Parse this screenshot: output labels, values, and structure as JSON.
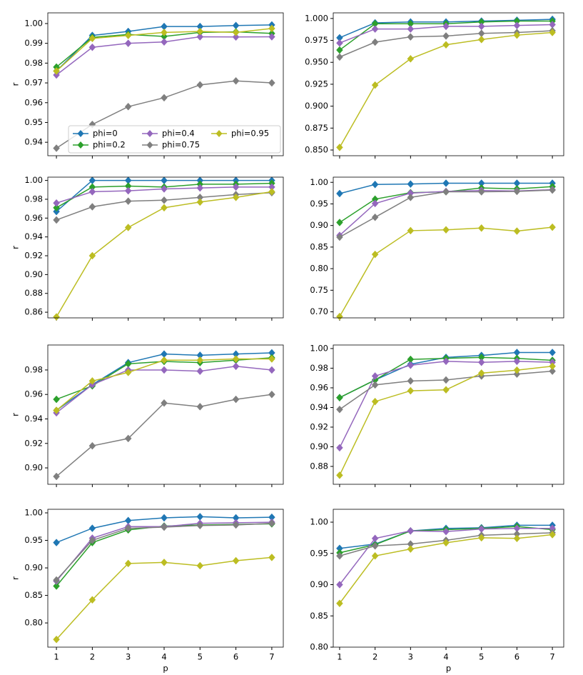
{
  "chart_data": [
    {
      "type": "line",
      "ylabel": "r",
      "legend": "lower right",
      "legend_ncol": 3,
      "x": [
        1,
        2,
        3,
        4,
        5,
        6,
        7
      ],
      "xlim": [
        0.76,
        7.32
      ],
      "xticks": [
        1,
        2,
        3,
        4,
        5,
        6,
        7
      ],
      "xtick_labels": false,
      "ylim": [
        0.9332,
        1.0054
      ],
      "yticks": [
        0.94,
        0.95,
        0.96,
        0.97,
        0.98,
        0.99,
        {
          "value": 1,
          "label": "1.00"
        }
      ],
      "series": [
        {
          "name": "phi=0",
          "color": "#1f77b4",
          "values": [
            0.976,
            0.994,
            0.996,
            0.9985,
            0.9985,
            0.999,
            0.9993
          ]
        },
        {
          "name": "phi=0.2",
          "color": "#2ca02c",
          "values": [
            0.978,
            0.993,
            0.9945,
            0.9935,
            0.9955,
            0.9958,
            0.995
          ]
        },
        {
          "name": "phi=0.4",
          "color": "#9467bd",
          "values": [
            0.974,
            0.988,
            0.99,
            0.9907,
            0.9933,
            0.9932,
            0.9933
          ]
        },
        {
          "name": "phi=0.75",
          "color": "#7f7f7f",
          "values": [
            0.937,
            0.949,
            0.958,
            0.9625,
            0.969,
            0.971,
            0.97
          ]
        },
        {
          "name": "phi=0.95",
          "color": "#bcbd22",
          "values": [
            0.976,
            0.9925,
            0.994,
            0.9955,
            0.996,
            0.9955,
            0.9975
          ]
        }
      ]
    },
    {
      "type": "line",
      "x": [
        1,
        2,
        3,
        4,
        5,
        6,
        7
      ],
      "xlim": [
        0.82,
        7.32
      ],
      "xticks": [
        1,
        2,
        3,
        4,
        5,
        6,
        7
      ],
      "xtick_labels": false,
      "ylim": [
        0.8435,
        1.0064
      ],
      "yticks": [
        {
          "value": 0.85,
          "label": "0.850"
        },
        0.875,
        {
          "value": 0.9,
          "label": "0.900"
        },
        0.925,
        {
          "value": 0.95,
          "label": "0.950"
        },
        0.975,
        {
          "value": 1,
          "label": "1.000"
        }
      ],
      "series": [
        {
          "color": "#1f77b4",
          "values": [
            0.978,
            0.995,
            0.996,
            0.996,
            0.997,
            0.998,
            0.999
          ]
        },
        {
          "color": "#2ca02c",
          "values": [
            0.964,
            0.994,
            0.994,
            0.994,
            0.996,
            0.997,
            0.997
          ]
        },
        {
          "color": "#9467bd",
          "values": [
            0.972,
            0.988,
            0.988,
            0.991,
            0.991,
            0.992,
            0.993
          ]
        },
        {
          "color": "#7f7f7f",
          "values": [
            0.956,
            0.973,
            0.979,
            0.98,
            0.983,
            0.984,
            0.986
          ]
        },
        {
          "color": "#bcbd22",
          "values": [
            0.853,
            0.924,
            0.954,
            0.97,
            0.976,
            0.981,
            0.984
          ]
        }
      ]
    },
    {
      "type": "line",
      "ylabel": "r",
      "x": [
        1,
        2,
        3,
        4,
        5,
        6,
        7
      ],
      "xlim": [
        0.76,
        7.32
      ],
      "xticks": [
        1,
        2,
        3,
        4,
        5,
        6,
        7
      ],
      "xtick_labels": false,
      "ylim": [
        0.854,
        1.0035
      ],
      "yticks": [
        0.86,
        0.88,
        {
          "value": 0.9,
          "label": "0.90"
        },
        0.92,
        0.94,
        0.96,
        0.98,
        {
          "value": 1,
          "label": "1.00"
        }
      ],
      "series": [
        {
          "color": "#1f77b4",
          "values": [
            0.967,
            1.0,
            1.0,
            1.0,
            1.0,
            1.0,
            1.0
          ]
        },
        {
          "color": "#2ca02c",
          "values": [
            0.971,
            0.993,
            0.994,
            0.993,
            0.996,
            0.996,
            0.997
          ]
        },
        {
          "color": "#9467bd",
          "values": [
            0.976,
            0.988,
            0.989,
            0.991,
            0.992,
            0.993,
            0.993
          ]
        },
        {
          "color": "#7f7f7f",
          "values": [
            0.958,
            0.972,
            0.978,
            0.979,
            0.982,
            0.985,
            0.987
          ]
        },
        {
          "color": "#bcbd22",
          "values": [
            0.855,
            0.92,
            0.95,
            0.971,
            0.977,
            0.982,
            0.988
          ]
        }
      ]
    },
    {
      "type": "line",
      "x": [
        1,
        2,
        3,
        4,
        5,
        6,
        7
      ],
      "xlim": [
        0.82,
        7.32
      ],
      "xticks": [
        1,
        2,
        3,
        4,
        5,
        6,
        7
      ],
      "xtick_labels": false,
      "ylim": [
        0.686,
        1.012
      ],
      "yticks": [
        {
          "value": 0.7,
          "label": "0.70"
        },
        0.75,
        {
          "value": 0.8,
          "label": "0.80"
        },
        0.85,
        {
          "value": 0.9,
          "label": "0.90"
        },
        0.95,
        {
          "value": 1,
          "label": "1.00"
        }
      ],
      "series": [
        {
          "color": "#1f77b4",
          "values": [
            0.974,
            0.995,
            0.996,
            0.998,
            0.998,
            0.998,
            0.998
          ]
        },
        {
          "color": "#2ca02c",
          "values": [
            0.907,
            0.961,
            0.976,
            0.978,
            0.987,
            0.985,
            0.99
          ]
        },
        {
          "color": "#9467bd",
          "values": [
            0.877,
            0.951,
            0.975,
            0.979,
            0.981,
            0.98,
            0.983
          ]
        },
        {
          "color": "#7f7f7f",
          "values": [
            0.873,
            0.919,
            0.965,
            0.978,
            0.978,
            0.979,
            0.982
          ]
        },
        {
          "color": "#bcbd22",
          "values": [
            0.689,
            0.833,
            0.888,
            0.89,
            0.894,
            0.887,
            0.896
          ]
        }
      ]
    },
    {
      "type": "line",
      "ylabel": "r",
      "x": [
        1,
        2,
        3,
        4,
        5,
        6,
        7
      ],
      "xlim": [
        0.76,
        7.32
      ],
      "xticks": [
        1,
        2,
        3,
        4,
        5,
        6,
        7
      ],
      "xtick_labels": false,
      "ylim": [
        0.8866,
        1.0004
      ],
      "yticks": [
        {
          "value": 0.9,
          "label": "0.90"
        },
        0.92,
        0.94,
        0.96,
        0.98
      ],
      "series": [
        {
          "color": "#1f77b4",
          "values": [
            0.947,
            0.968,
            0.986,
            0.993,
            0.992,
            0.993,
            0.994
          ]
        },
        {
          "color": "#2ca02c",
          "values": [
            0.956,
            0.967,
            0.985,
            0.987,
            0.986,
            0.988,
            0.99
          ]
        },
        {
          "color": "#9467bd",
          "values": [
            0.945,
            0.968,
            0.98,
            0.98,
            0.979,
            0.983,
            0.98
          ]
        },
        {
          "color": "#7f7f7f",
          "values": [
            0.893,
            0.918,
            0.924,
            0.953,
            0.95,
            0.956,
            0.96
          ]
        },
        {
          "color": "#bcbd22",
          "values": [
            0.947,
            0.971,
            0.978,
            0.988,
            0.988,
            0.989,
            0.989
          ]
        }
      ]
    },
    {
      "type": "line",
      "x": [
        1,
        2,
        3,
        4,
        5,
        6,
        7
      ],
      "xlim": [
        0.82,
        7.32
      ],
      "xticks": [
        1,
        2,
        3,
        4,
        5,
        6,
        7
      ],
      "xtick_labels": false,
      "ylim": [
        0.8618,
        1.0036
      ],
      "yticks": [
        0.88,
        {
          "value": 0.9,
          "label": "0.90"
        },
        0.92,
        0.94,
        0.96,
        0.98,
        {
          "value": 1,
          "label": "1.00"
        }
      ],
      "series": [
        {
          "color": "#1f77b4",
          "values": [
            0.95,
            0.968,
            0.984,
            0.991,
            0.993,
            0.996,
            0.996
          ]
        },
        {
          "color": "#2ca02c",
          "values": [
            0.95,
            0.968,
            0.989,
            0.99,
            0.991,
            0.99,
            0.988
          ]
        },
        {
          "color": "#9467bd",
          "values": [
            0.899,
            0.972,
            0.983,
            0.987,
            0.986,
            0.987,
            0.986
          ]
        },
        {
          "color": "#7f7f7f",
          "values": [
            0.938,
            0.963,
            0.967,
            0.968,
            0.972,
            0.974,
            0.977
          ]
        },
        {
          "color": "#bcbd22",
          "values": [
            0.871,
            0.946,
            0.957,
            0.958,
            0.975,
            0.978,
            0.982
          ]
        }
      ]
    },
    {
      "type": "line",
      "ylabel": "r",
      "xlabel": "p",
      "x": [
        1,
        2,
        3,
        4,
        5,
        6,
        7
      ],
      "xlim": [
        0.76,
        7.32
      ],
      "xticks": [
        1,
        2,
        3,
        4,
        5,
        6,
        7
      ],
      "xtick_labels": true,
      "ylim": [
        0.756,
        1.0065
      ],
      "yticks": [
        {
          "value": 0.8,
          "label": "0.80"
        },
        0.85,
        {
          "value": 0.9,
          "label": "0.90"
        },
        0.95,
        {
          "value": 1,
          "label": "1.00"
        }
      ],
      "series": [
        {
          "color": "#1f77b4",
          "values": [
            0.946,
            0.972,
            0.986,
            0.991,
            0.993,
            0.991,
            0.992
          ]
        },
        {
          "color": "#2ca02c",
          "values": [
            0.867,
            0.946,
            0.969,
            0.976,
            0.978,
            0.979,
            0.98
          ]
        },
        {
          "color": "#9467bd",
          "values": [
            0.876,
            0.954,
            0.975,
            0.975,
            0.981,
            0.982,
            0.983
          ]
        },
        {
          "color": "#7f7f7f",
          "values": [
            0.878,
            0.95,
            0.972,
            0.974,
            0.977,
            0.978,
            0.981
          ]
        },
        {
          "color": "#bcbd22",
          "values": [
            0.77,
            0.842,
            0.908,
            0.91,
            0.904,
            0.913,
            0.919
          ]
        }
      ]
    },
    {
      "type": "line",
      "xlabel": "p",
      "x": [
        1,
        2,
        3,
        4,
        5,
        6,
        7
      ],
      "xlim": [
        0.82,
        7.32
      ],
      "xticks": [
        1,
        2,
        3,
        4,
        5,
        6,
        7
      ],
      "xtick_labels": true,
      "ylim": [
        0.8,
        1.0206
      ],
      "yticks": [
        {
          "value": 0.8,
          "label": "0.80"
        },
        0.85,
        {
          "value": 0.9,
          "label": "0.90"
        },
        0.95,
        {
          "value": 1,
          "label": "1.00"
        }
      ],
      "series": [
        {
          "color": "#1f77b4",
          "values": [
            0.958,
            0.965,
            0.986,
            0.99,
            0.991,
            0.995,
            0.995
          ]
        },
        {
          "color": "#2ca02c",
          "values": [
            0.951,
            0.964,
            0.986,
            0.988,
            0.99,
            0.993,
            0.988
          ]
        },
        {
          "color": "#9467bd",
          "values": [
            0.9,
            0.974,
            0.986,
            0.985,
            0.989,
            0.99,
            0.99
          ]
        },
        {
          "color": "#7f7f7f",
          "values": [
            0.946,
            0.962,
            0.965,
            0.971,
            0.979,
            0.981,
            0.983
          ]
        },
        {
          "color": "#bcbd22",
          "values": [
            0.87,
            0.946,
            0.957,
            0.967,
            0.975,
            0.974,
            0.98
          ]
        }
      ]
    }
  ]
}
